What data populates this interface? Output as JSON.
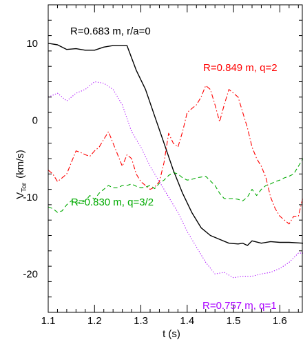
{
  "chart_data": {
    "type": "line",
    "xlabel": "t (s)",
    "ylabel_main": "V",
    "ylabel_sub": "Tor",
    "ylabel_unit": "(km/s)",
    "xlim": [
      1.1,
      1.65
    ],
    "ylim": [
      -25,
      15
    ],
    "x_ticks": [
      1.1,
      1.2,
      1.3,
      1.4,
      1.5,
      1.6
    ],
    "x_tick_labels": [
      "1.1",
      "1.2",
      "1.3",
      "1.4",
      "1.5",
      "1.6"
    ],
    "y_ticks": [
      10,
      0,
      -10,
      -20
    ],
    "y_tick_labels": [
      "10",
      "0",
      "-10",
      "-20"
    ],
    "grid": false,
    "series": [
      {
        "name": "R=0.683 m, r/a=0",
        "color": "#000000",
        "dash": "solid",
        "label_color": "#000000",
        "x": [
          1.1,
          1.12,
          1.14,
          1.16,
          1.18,
          1.2,
          1.22,
          1.24,
          1.255,
          1.27,
          1.29,
          1.31,
          1.33,
          1.35,
          1.37,
          1.39,
          1.41,
          1.43,
          1.45,
          1.47,
          1.49,
          1.51,
          1.52,
          1.53,
          1.54,
          1.56,
          1.58,
          1.6,
          1.62,
          1.65
        ],
        "y": [
          10.0,
          9.8,
          9.2,
          9.3,
          9.1,
          9.1,
          9.5,
          9.7,
          9.7,
          9.7,
          6.5,
          4.0,
          0.5,
          -3.0,
          -6.5,
          -9.5,
          -12.0,
          -14.0,
          -15.0,
          -15.5,
          -16.0,
          -16.1,
          -16.0,
          -16.3,
          -15.7,
          -16.0,
          -15.8,
          -15.9,
          -15.9,
          -16.0
        ]
      },
      {
        "name": "R=0.849 m, q=2",
        "color": "#ff0000",
        "dash": "dashdot",
        "label_color": "#ff0000",
        "x": [
          1.1,
          1.11,
          1.12,
          1.13,
          1.14,
          1.15,
          1.16,
          1.17,
          1.18,
          1.19,
          1.2,
          1.21,
          1.22,
          1.23,
          1.24,
          1.25,
          1.26,
          1.27,
          1.28,
          1.29,
          1.3,
          1.31,
          1.32,
          1.33,
          1.34,
          1.35,
          1.36,
          1.37,
          1.38,
          1.39,
          1.4,
          1.41,
          1.42,
          1.43,
          1.44,
          1.45,
          1.46,
          1.47,
          1.48,
          1.49,
          1.5,
          1.51,
          1.52,
          1.53,
          1.54,
          1.55,
          1.56,
          1.57,
          1.58,
          1.59,
          1.6,
          1.61,
          1.62,
          1.63,
          1.64,
          1.65
        ],
        "y": [
          -6.5,
          -7.0,
          -8.0,
          -7.5,
          -7.0,
          -5.5,
          -4.0,
          -4.2,
          -4.5,
          -4.7,
          -4.0,
          -3.5,
          -2.5,
          -1.5,
          -3.0,
          -4.5,
          -6.0,
          -4.5,
          -5.0,
          -7.0,
          -8.0,
          -8.5,
          -9.0,
          -8.7,
          -8.0,
          -5.5,
          -1.7,
          -3.0,
          -3.5,
          -1.5,
          1.0,
          1.5,
          2.0,
          3.0,
          4.5,
          4.0,
          2.0,
          -0.2,
          2.0,
          4.0,
          3.5,
          3.0,
          1.0,
          -1.0,
          -3.5,
          -5.0,
          -6.0,
          -7.5,
          -10.0,
          -11.5,
          -12.5,
          -13.0,
          -13.5,
          -12.5,
          -12.5,
          -10.0
        ]
      },
      {
        "name": "R=0.830 m, q=3/2",
        "color": "#00aa00",
        "dash": "dashed",
        "label_color": "#00aa00",
        "x": [
          1.1,
          1.11,
          1.12,
          1.13,
          1.14,
          1.15,
          1.16,
          1.17,
          1.18,
          1.19,
          1.2,
          1.21,
          1.22,
          1.23,
          1.24,
          1.25,
          1.26,
          1.27,
          1.28,
          1.29,
          1.3,
          1.31,
          1.32,
          1.33,
          1.34,
          1.35,
          1.36,
          1.37,
          1.38,
          1.39,
          1.4,
          1.41,
          1.42,
          1.43,
          1.44,
          1.45,
          1.46,
          1.47,
          1.48,
          1.49,
          1.5,
          1.51,
          1.52,
          1.53,
          1.54,
          1.55,
          1.56,
          1.57,
          1.58,
          1.59,
          1.6,
          1.61,
          1.62,
          1.63,
          1.64,
          1.65
        ],
        "y": [
          -11.3,
          -11.5,
          -12.0,
          -11.8,
          -11.0,
          -10.5,
          -10.8,
          -10.7,
          -10.5,
          -9.8,
          -10.3,
          -9.5,
          -9.0,
          -8.5,
          -8.8,
          -8.8,
          -8.5,
          -8.5,
          -8.3,
          -8.6,
          -8.8,
          -8.7,
          -8.5,
          -8.9,
          -8.2,
          -7.8,
          -7.2,
          -6.8,
          -7.0,
          -7.5,
          -7.8,
          -7.7,
          -7.5,
          -7.4,
          -7.3,
          -7.9,
          -8.5,
          -9.5,
          -10.2,
          -10.2,
          -10.2,
          -10.3,
          -10.5,
          -10.0,
          -9.0,
          -9.8,
          -9.0,
          -8.5,
          -8.3,
          -8.0,
          -7.8,
          -7.5,
          -7.3,
          -7.0,
          -6.0,
          -5.0
        ]
      },
      {
        "name": "R=0.757 m, q=1",
        "color": "#aa00ff",
        "dash": "dotted",
        "label_color": "#aa00ff",
        "x": [
          1.1,
          1.12,
          1.14,
          1.16,
          1.18,
          1.2,
          1.22,
          1.24,
          1.26,
          1.28,
          1.3,
          1.32,
          1.34,
          1.36,
          1.38,
          1.4,
          1.42,
          1.44,
          1.46,
          1.48,
          1.5,
          1.52,
          1.54,
          1.56,
          1.58,
          1.6,
          1.62,
          1.64,
          1.65
        ],
        "y": [
          3.0,
          3.5,
          2.5,
          3.5,
          4.0,
          5.0,
          4.8,
          4.0,
          2.0,
          -1.5,
          -3.5,
          -6.0,
          -8.0,
          -10.0,
          -12.0,
          -14.5,
          -16.5,
          -18.5,
          -20.0,
          -19.8,
          -20.5,
          -20.3,
          -20.3,
          -20.0,
          -19.8,
          -19.3,
          -18.5,
          -17.3,
          -17.3
        ]
      }
    ]
  }
}
